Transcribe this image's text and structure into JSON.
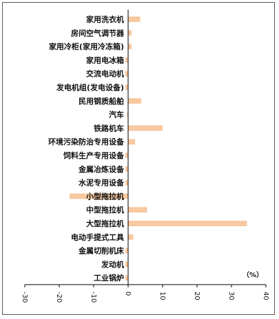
{
  "chart_data": {
    "type": "bar",
    "orientation": "horizontal",
    "unit_label": "（%）",
    "categories": [
      "家用洗衣机",
      "房间空气调节器",
      "家用冷柜(家用冷冻箱)",
      "家用电冰箱",
      "交流电动机",
      "发电机组(发电设备)",
      "民用钢质船舶",
      "汽车",
      "铁路机车",
      "环境污染防治专用设备",
      "饲料生产专用设备",
      "金属冶炼设备",
      "水泥专用设备",
      "小型拖拉机",
      "中型拖拉机",
      "大型拖拉机",
      "电动手提式工具",
      "金属切削机床",
      "发动机",
      "工业锅炉"
    ],
    "values": [
      3.5,
      1.0,
      1.0,
      -0.8,
      -0.8,
      -0.8,
      3.8,
      -0.3,
      10.0,
      2.0,
      -0.8,
      -0.8,
      -0.8,
      -17.0,
      5.5,
      34.5,
      1.5,
      -0.8,
      -0.8,
      -0.8
    ],
    "xlim": [
      -30,
      40
    ],
    "xticks": [
      "-30",
      "-20",
      "-10",
      "0",
      "10",
      "20",
      "30",
      "40"
    ],
    "tick_values": [
      -30,
      -20,
      -10,
      0,
      10,
      20,
      30,
      40
    ],
    "bar_color": "#F8C8A0",
    "axis_color": "#000000",
    "grid": false,
    "legend": "none"
  }
}
